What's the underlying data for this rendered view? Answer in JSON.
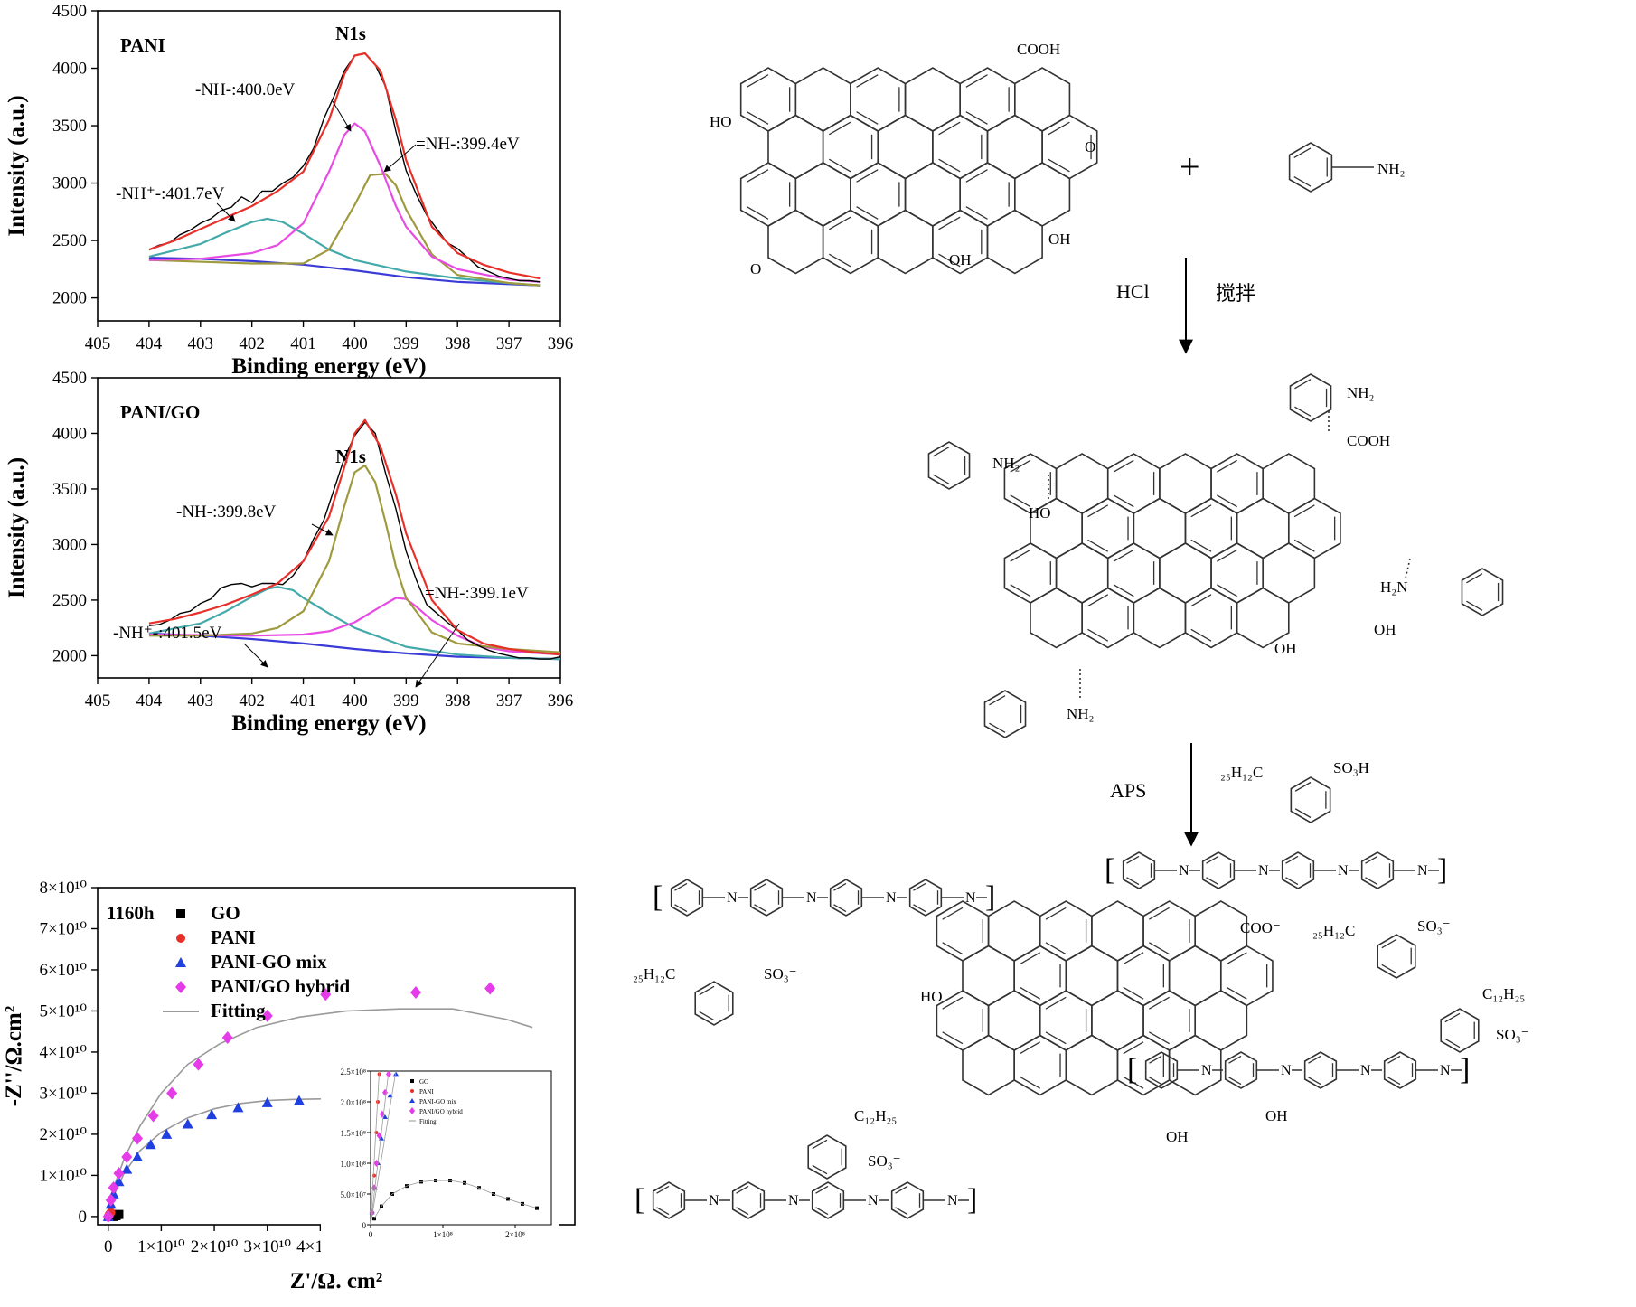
{
  "figure_labels": {
    "hcl": "HCl",
    "stir": "搅拌",
    "aps": "APS",
    "plus": "+"
  },
  "chem": {
    "cooh": "COOH",
    "oh": "OH",
    "ho": "HO",
    "o": "O",
    "nh2": "NH₂",
    "h2n": "H₂N",
    "cooh2": "COOH",
    "coo": "COO⁻",
    "dodecyl_left": "₂₅H₁₂C",
    "so3h": "SO₃H",
    "so3": "SO₃⁻",
    "c12h25": "C₁₂H₂₅",
    "nh": "N",
    "h": "H",
    "n_eq": "N",
    "bracket_dot": "•",
    "plus_dot": "+ •"
  },
  "chart_data": [
    {
      "type": "line",
      "panel_label": "PANI",
      "title": "N1s",
      "xlabel": "Binding energy (eV)",
      "ylabel": "Intensity (a.u.)",
      "xlim": [
        405,
        396
      ],
      "ylim": [
        1800,
        4500
      ],
      "x_ticks": [
        405,
        404,
        403,
        402,
        401,
        400,
        399,
        398,
        397,
        396
      ],
      "y_ticks": [
        2000,
        2500,
        3000,
        3500,
        4000,
        4500
      ],
      "annotations": [
        "-NH-:400.0eV",
        "=NH-:399.4eV",
        "-NH⁺-:401.7eV"
      ],
      "series": [
        {
          "role": "raw",
          "color": "#000000",
          "x": [
            404.0,
            403.8,
            403.6,
            403.4,
            403.2,
            403.0,
            402.8,
            402.6,
            402.4,
            402.2,
            402.0,
            401.8,
            401.6,
            401.4,
            401.2,
            401.0,
            400.8,
            400.6,
            400.4,
            400.2,
            400.0,
            399.8,
            399.6,
            399.4,
            399.2,
            399.0,
            398.8,
            398.6,
            398.4,
            398.2,
            398.0,
            397.8,
            397.6,
            397.4,
            397.2,
            397.0,
            396.8,
            396.6,
            396.4
          ],
          "y": [
            2420,
            2460,
            2480,
            2550,
            2590,
            2650,
            2690,
            2760,
            2790,
            2880,
            2830,
            2930,
            2930,
            3000,
            3050,
            3150,
            3300,
            3560,
            3760,
            3980,
            4110,
            4130,
            4030,
            3840,
            3450,
            3110,
            2900,
            2720,
            2600,
            2480,
            2430,
            2350,
            2270,
            2230,
            2190,
            2170,
            2150,
            2150,
            2140
          ]
        },
        {
          "role": "fit-total",
          "color": "#e8302a",
          "x": [
            404.0,
            403.5,
            403.0,
            402.5,
            402.0,
            401.5,
            401.0,
            400.5,
            400.2,
            400.0,
            399.8,
            399.5,
            399.2,
            399.0,
            398.5,
            398.0,
            397.5,
            397.0,
            396.4
          ],
          "y": [
            2420,
            2500,
            2600,
            2700,
            2800,
            2930,
            3100,
            3550,
            3950,
            4110,
            4130,
            3980,
            3550,
            3200,
            2620,
            2390,
            2290,
            2220,
            2170
          ]
        },
        {
          "role": "peak-400.0",
          "color": "#e84be3",
          "x": [
            404.0,
            403.0,
            402.0,
            401.5,
            401.0,
            400.5,
            400.2,
            400.0,
            399.8,
            399.5,
            399.2,
            399.0,
            398.5,
            398.0,
            397.0,
            396.4
          ],
          "y": [
            2330,
            2340,
            2390,
            2460,
            2650,
            3100,
            3420,
            3520,
            3450,
            3150,
            2800,
            2620,
            2360,
            2250,
            2160,
            2140
          ]
        },
        {
          "role": "peak-399.4",
          "color": "#9e9a3d",
          "x": [
            404.0,
            402.0,
            401.0,
            400.5,
            400.0,
            399.7,
            399.4,
            399.2,
            399.0,
            398.5,
            398.0,
            397.0,
            396.4
          ],
          "y": [
            2330,
            2300,
            2300,
            2420,
            2810,
            3070,
            3080,
            2980,
            2770,
            2380,
            2200,
            2130,
            2110
          ]
        },
        {
          "role": "peak-401.7",
          "color": "#44a9a9",
          "x": [
            404.0,
            403.0,
            402.5,
            402.0,
            401.7,
            401.4,
            401.0,
            400.5,
            400.0,
            399.0,
            398.0,
            397.0,
            396.4
          ],
          "y": [
            2360,
            2470,
            2570,
            2660,
            2690,
            2660,
            2560,
            2420,
            2330,
            2230,
            2170,
            2130,
            2110
          ]
        },
        {
          "role": "background",
          "color": "#3b3bd8",
          "x": [
            404.0,
            403.0,
            402.0,
            401.0,
            400.0,
            399.0,
            398.0,
            397.0,
            396.4
          ],
          "y": [
            2350,
            2340,
            2320,
            2290,
            2240,
            2180,
            2140,
            2120,
            2110
          ]
        }
      ]
    },
    {
      "type": "line",
      "panel_label": "PANI/GO",
      "title": "N1s",
      "xlabel": "Binding energy (eV)",
      "ylabel": "Intensity (a.u.)",
      "xlim": [
        405,
        396
      ],
      "ylim": [
        1800,
        4500
      ],
      "x_ticks": [
        405,
        404,
        403,
        402,
        401,
        400,
        399,
        398,
        397,
        396
      ],
      "y_ticks": [
        2000,
        2500,
        3000,
        3500,
        4000,
        4500
      ],
      "annotations": [
        "-NH-:399.8eV",
        "=NH-:399.1eV",
        "-NH⁺-:401.5eV"
      ],
      "series": [
        {
          "role": "raw",
          "color": "#000000",
          "x": [
            404.0,
            403.8,
            403.6,
            403.4,
            403.2,
            403.0,
            402.8,
            402.6,
            402.4,
            402.2,
            402.0,
            401.8,
            401.6,
            401.4,
            401.2,
            401.0,
            400.8,
            400.6,
            400.4,
            400.2,
            400.0,
            399.8,
            399.6,
            399.4,
            399.2,
            399.0,
            398.8,
            398.6,
            398.4,
            398.2,
            398.0,
            397.8,
            397.6,
            397.4,
            397.2,
            397.0,
            396.8,
            396.6,
            396.4,
            396.2,
            396.0
          ],
          "y": [
            2270,
            2280,
            2320,
            2380,
            2400,
            2470,
            2510,
            2610,
            2640,
            2650,
            2620,
            2650,
            2650,
            2640,
            2720,
            2850,
            3050,
            3220,
            3500,
            3780,
            3980,
            4100,
            4000,
            3640,
            3320,
            2940,
            2680,
            2460,
            2380,
            2300,
            2230,
            2140,
            2090,
            2050,
            2020,
            2000,
            1980,
            1980,
            1970,
            1970,
            1990
          ]
        },
        {
          "role": "fit-total",
          "color": "#e8302a",
          "x": [
            404.0,
            403.5,
            403.0,
            402.5,
            402.0,
            401.5,
            401.0,
            400.5,
            400.2,
            400.0,
            399.8,
            399.5,
            399.2,
            399.0,
            398.5,
            398.0,
            397.5,
            397.0,
            396.5,
            396.0
          ],
          "y": [
            2290,
            2330,
            2390,
            2460,
            2550,
            2650,
            2850,
            3250,
            3700,
            4000,
            4120,
            3880,
            3450,
            3100,
            2500,
            2230,
            2110,
            2060,
            2030,
            2010
          ]
        },
        {
          "role": "peak-399.8",
          "color": "#9e9a3d",
          "x": [
            404.0,
            403.0,
            402.0,
            401.5,
            401.0,
            400.5,
            400.2,
            400.0,
            399.8,
            399.6,
            399.4,
            399.2,
            399.0,
            398.5,
            398.0,
            397.0,
            396.0
          ],
          "y": [
            2180,
            2180,
            2200,
            2250,
            2400,
            2850,
            3350,
            3650,
            3710,
            3560,
            3200,
            2800,
            2520,
            2210,
            2110,
            2060,
            2030
          ]
        },
        {
          "role": "peak-399.1",
          "color": "#e84be3",
          "x": [
            404.0,
            402.0,
            401.0,
            400.5,
            400.0,
            399.5,
            399.2,
            399.0,
            398.8,
            398.5,
            398.0,
            397.5,
            397.0,
            396.0
          ],
          "y": [
            2190,
            2180,
            2190,
            2220,
            2300,
            2440,
            2520,
            2510,
            2440,
            2320,
            2180,
            2080,
            2040,
            2010
          ]
        },
        {
          "role": "peak-401.5",
          "color": "#44a9a9",
          "x": [
            404.0,
            403.0,
            402.5,
            402.0,
            401.7,
            401.5,
            401.2,
            401.0,
            400.5,
            400.0,
            399.0,
            398.0,
            397.0,
            396.0
          ],
          "y": [
            2200,
            2290,
            2400,
            2530,
            2600,
            2620,
            2590,
            2520,
            2380,
            2250,
            2080,
            2010,
            1980,
            1970
          ]
        },
        {
          "role": "background",
          "color": "#3b3bd8",
          "x": [
            404.0,
            403.0,
            402.0,
            401.0,
            400.0,
            399.5,
            399.0,
            398.0,
            397.0,
            396.0
          ],
          "y": [
            2200,
            2180,
            2150,
            2110,
            2060,
            2040,
            2020,
            1990,
            1980,
            1970
          ]
        }
      ]
    },
    {
      "type": "scatter",
      "panel_label": "1160h",
      "xlabel": "Z'/Ω. cm²",
      "ylabel": "-Z''/Ω.cm²",
      "xlim": [
        -0.2,
        8.8
      ],
      "ylim": [
        -0.2,
        8.0
      ],
      "axis_unit": "×10¹⁰",
      "x_ticks": [
        0,
        1,
        2,
        3,
        4,
        5,
        6,
        7,
        8
      ],
      "y_ticks": [
        0,
        1,
        2,
        3,
        4,
        5,
        6,
        7,
        8
      ],
      "x_tick_labels": [
        "0",
        "1×10¹⁰",
        "2×10¹⁰",
        "3×10¹⁰",
        "4×10¹⁰",
        "5×10¹⁰",
        "6×10¹⁰",
        "7×10¹⁰",
        "8×10¹⁰"
      ],
      "y_tick_labels": [
        "0",
        "1×10¹⁰",
        "2×10¹⁰",
        "3×10¹⁰",
        "4×10¹⁰",
        "5×10¹⁰",
        "6×10¹⁰",
        "7×10¹⁰",
        "8×10¹⁰"
      ],
      "legend": [
        "GO",
        "PANI",
        "PANI-GO mix",
        "PANI/GO hybrid",
        "Fitting"
      ],
      "series": [
        {
          "name": "GO",
          "marker": "square",
          "color": "#000000",
          "x": [
            0.1,
            0.15,
            0.2
          ],
          "y": [
            0.0,
            0.02,
            0.05
          ]
        },
        {
          "name": "PANI",
          "marker": "circle",
          "color": "#e8302a",
          "x": [
            0.0,
            0.02,
            0.05
          ],
          "y": [
            0.0,
            0.05,
            0.1
          ]
        },
        {
          "name": "PANI-GO mix",
          "marker": "triangle",
          "color": "#1f3fe0",
          "x": [
            0.0,
            0.05,
            0.1,
            0.2,
            0.35,
            0.55,
            0.8,
            1.1,
            1.5,
            1.95,
            2.45,
            3.0,
            3.6,
            4.3
          ],
          "y": [
            0.0,
            0.3,
            0.55,
            0.85,
            1.15,
            1.45,
            1.75,
            2.0,
            2.25,
            2.48,
            2.65,
            2.77,
            2.82,
            2.86
          ]
        },
        {
          "name": "PANI/GO hybrid",
          "marker": "diamond",
          "color": "#e63be8",
          "x": [
            0.0,
            0.05,
            0.1,
            0.2,
            0.35,
            0.55,
            0.85,
            1.2,
            1.7,
            2.25,
            3.0,
            4.1,
            5.8,
            7.2
          ],
          "y": [
            0.0,
            0.4,
            0.7,
            1.05,
            1.45,
            1.9,
            2.45,
            3.0,
            3.7,
            4.35,
            4.88,
            5.4,
            5.45,
            5.55
          ]
        },
        {
          "name": "Fitting-hybrid",
          "marker": "line",
          "color": "#9a9a9a",
          "x": [
            0.0,
            0.1,
            0.3,
            0.6,
            1.0,
            1.5,
            2.1,
            2.8,
            3.6,
            4.5,
            5.5,
            6.5,
            7.5,
            8.0
          ],
          "y": [
            0.0,
            0.7,
            1.4,
            2.2,
            3.0,
            3.7,
            4.2,
            4.6,
            4.85,
            5.0,
            5.05,
            5.05,
            4.8,
            4.6
          ]
        },
        {
          "name": "Fitting-mix",
          "marker": "line",
          "color": "#9a9a9a",
          "x": [
            0.0,
            0.1,
            0.3,
            0.6,
            1.0,
            1.5,
            2.0,
            2.5,
            3.0,
            3.5,
            4.0,
            4.5,
            5.0
          ],
          "y": [
            0.0,
            0.5,
            1.05,
            1.6,
            2.05,
            2.4,
            2.62,
            2.75,
            2.82,
            2.85,
            2.86,
            2.86,
            2.86
          ]
        }
      ]
    },
    {
      "type": "scatter",
      "panel_label": "inset",
      "xlim": [
        0,
        2.5
      ],
      "ylim": [
        0,
        2.5
      ],
      "axis_unit": "×10⁸",
      "x_ticks": [
        0,
        1,
        2
      ],
      "y_ticks": [
        0.0,
        0.5,
        1.0,
        1.5,
        2.0,
        2.5
      ],
      "x_tick_labels": [
        "0",
        "1×10⁸",
        "2×10⁸"
      ],
      "y_tick_labels": [
        "0",
        "5.0×10⁷",
        "1.0×10⁸",
        "1.5×10⁸",
        "2.0×10⁸",
        "2.5×10⁸"
      ],
      "legend": [
        "GO",
        "PANI",
        "PANI-GO mix",
        "PANI/GO hybrid",
        "Fitting"
      ],
      "series": [
        {
          "name": "GO",
          "marker": "square",
          "color": "#000000",
          "x": [
            0.05,
            0.15,
            0.3,
            0.5,
            0.7,
            0.9,
            1.1,
            1.3,
            1.5,
            1.7,
            1.9,
            2.1,
            2.3
          ],
          "y": [
            0.1,
            0.3,
            0.5,
            0.63,
            0.7,
            0.72,
            0.72,
            0.68,
            0.6,
            0.5,
            0.42,
            0.34,
            0.27
          ]
        },
        {
          "name": "PANI",
          "marker": "circle",
          "color": "#e8302a",
          "x": [
            0.02,
            0.05,
            0.08,
            0.1,
            0.12
          ],
          "y": [
            0.2,
            0.8,
            1.5,
            2.0,
            2.45
          ]
        },
        {
          "name": "PANI-GO mix",
          "marker": "triangle",
          "color": "#1f3fe0",
          "x": [
            0.02,
            0.06,
            0.1,
            0.15,
            0.2,
            0.27,
            0.35
          ],
          "y": [
            0.2,
            0.6,
            1.0,
            1.4,
            1.75,
            2.1,
            2.45
          ]
        },
        {
          "name": "PANI/GO hybrid",
          "marker": "diamond",
          "color": "#e63be8",
          "x": [
            0.02,
            0.05,
            0.08,
            0.12,
            0.16,
            0.2,
            0.25
          ],
          "y": [
            0.2,
            0.6,
            1.0,
            1.45,
            1.8,
            2.15,
            2.45
          ]
        }
      ]
    }
  ]
}
